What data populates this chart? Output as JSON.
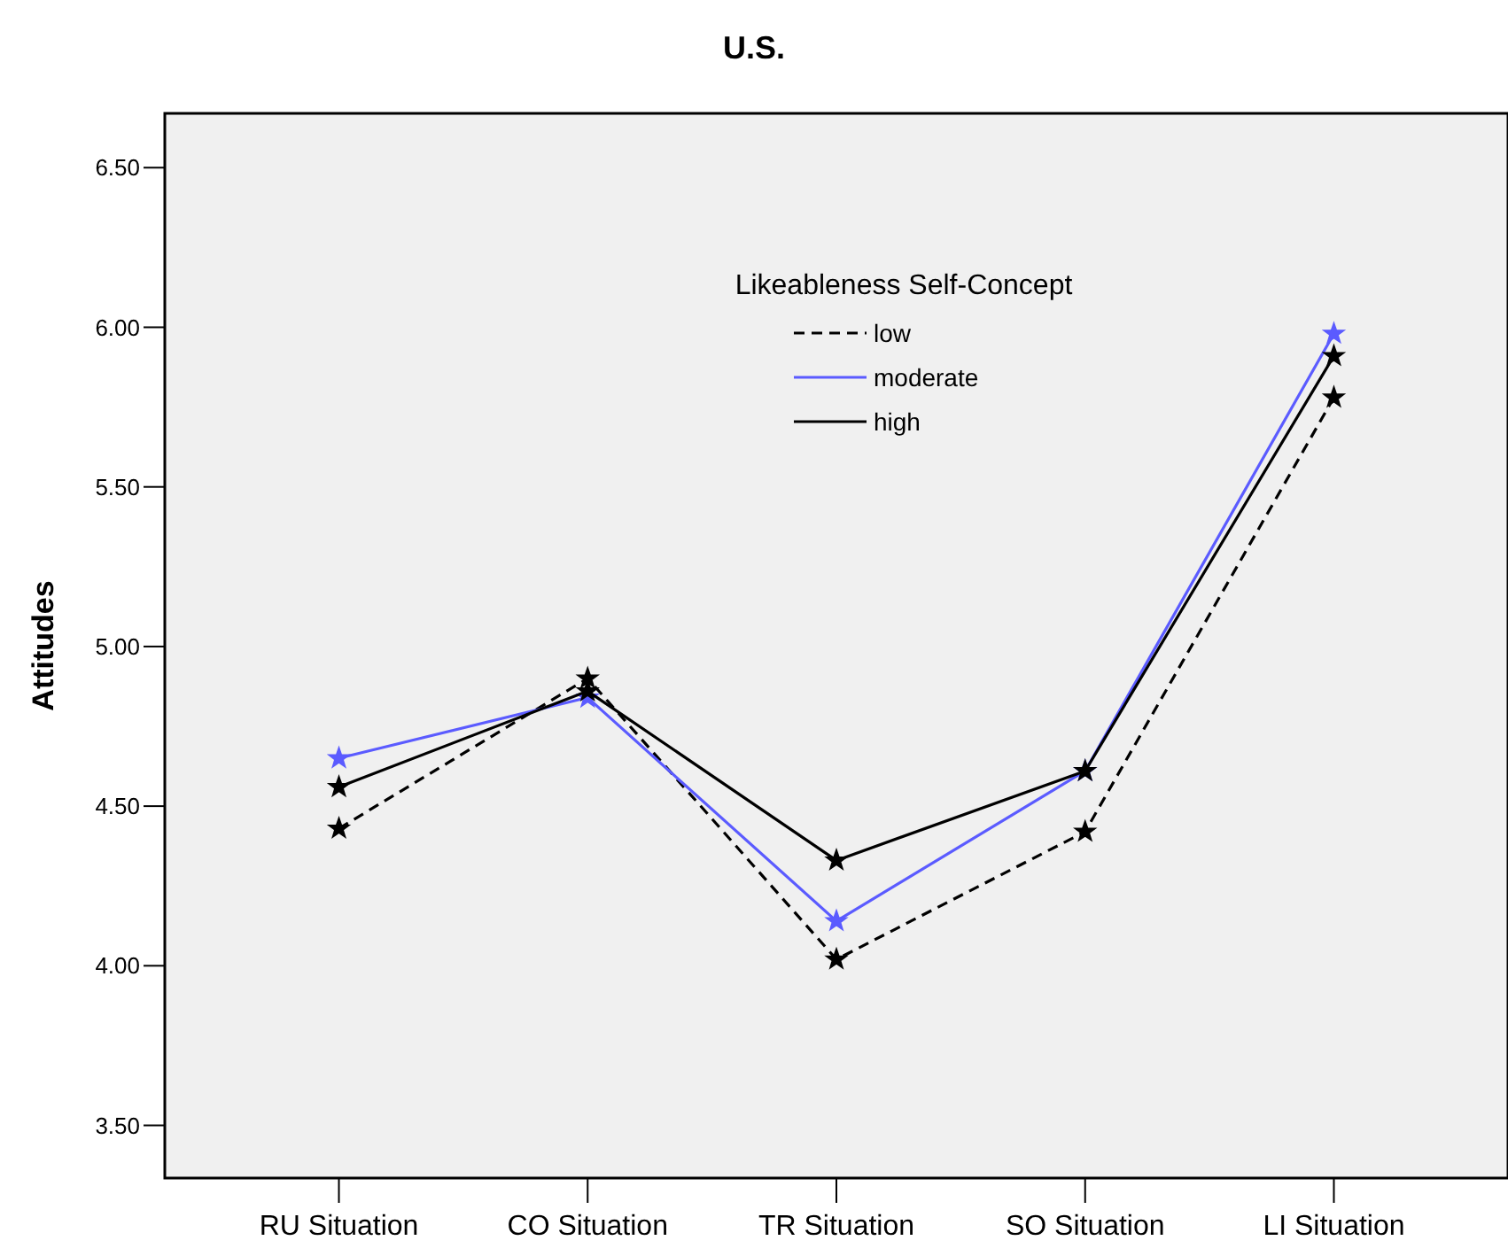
{
  "chart_data": {
    "type": "line",
    "title": "U.S.",
    "ylabel": "Attitudes",
    "legend_title": "Likeableness Self-Concept",
    "categories": [
      "RU Situation",
      "CO Situation",
      "TR Situation",
      "SO Situation",
      "LI Situation"
    ],
    "series": [
      {
        "name": "low",
        "color": "#000000",
        "line_style": "dashed",
        "values": [
          4.43,
          4.9,
          4.02,
          4.42,
          5.78
        ]
      },
      {
        "name": "moderate",
        "color": "#5b5bff",
        "line_style": "solid",
        "values": [
          4.65,
          4.84,
          4.14,
          4.61,
          5.98
        ]
      },
      {
        "name": "high",
        "color": "#000000",
        "line_style": "solid",
        "values": [
          4.56,
          4.86,
          4.33,
          4.61,
          5.91
        ]
      }
    ],
    "ylim": [
      3.335,
      6.67
    ],
    "yticks": [
      {
        "value": 3.5,
        "label": "3.50"
      },
      {
        "value": 4,
        "label": "4.00"
      },
      {
        "value": 4.5,
        "label": "4.50"
      },
      {
        "value": 5,
        "label": "5.00"
      },
      {
        "value": 5.5,
        "label": "5.50"
      },
      {
        "value": 6,
        "label": "6.00"
      },
      {
        "value": 6.5,
        "label": "6.50"
      }
    ],
    "marker": "star",
    "legend": "top",
    "grid": false
  }
}
